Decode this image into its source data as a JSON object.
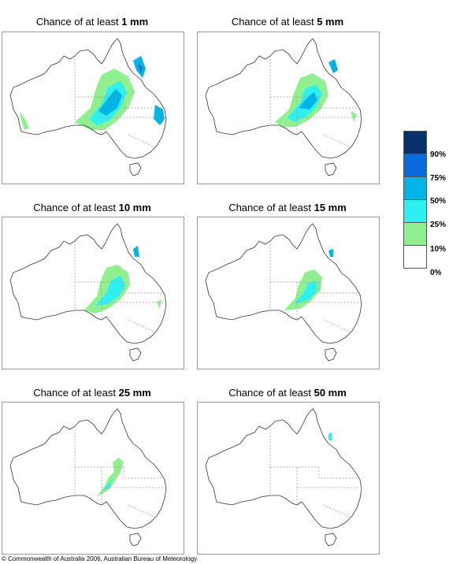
{
  "panels": [
    {
      "prefix": "Chance of at least ",
      "amount": "1 mm"
    },
    {
      "prefix": "Chance of at least ",
      "amount": "5 mm"
    },
    {
      "prefix": "Chance of at least ",
      "amount": "10 mm"
    },
    {
      "prefix": "Chance of at least ",
      "amount": "15 mm"
    },
    {
      "prefix": "Chance of at least ",
      "amount": "25 mm"
    },
    {
      "prefix": "Chance of at least ",
      "amount": "50 mm"
    }
  ],
  "legend": {
    "colors": [
      "#08306b",
      "#0a6ad9",
      "#00b4e6",
      "#2ef0f0",
      "#90f090",
      "#ffffff"
    ],
    "labels": [
      "90%",
      "75%",
      "50%",
      "25%",
      "10%",
      "0%"
    ]
  },
  "footer": "© Commonwealth of Australia 2006, Australian Bureau of Meteorology"
}
